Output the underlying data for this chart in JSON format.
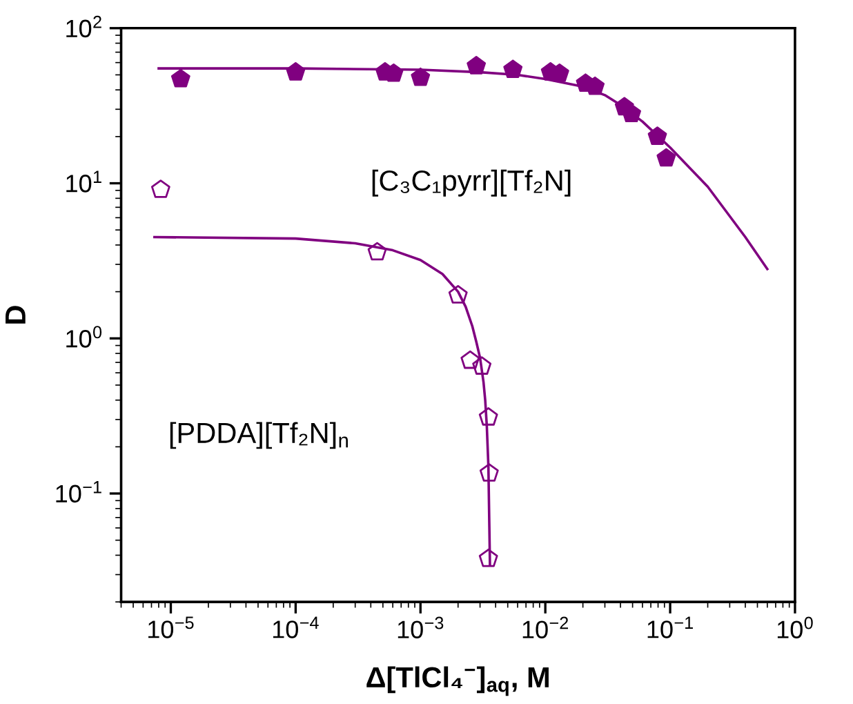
{
  "chart_data": {
    "type": "scatter",
    "xlabel": "Δ[TlCl₄$^{−}$]$_{aq}$, M",
    "ylabel": "D",
    "log": "xy",
    "xlim": [
      4e-06,
      1
    ],
    "ylim": [
      0.02,
      100
    ],
    "xticks": [
      {
        "value": 1e-05,
        "label": "10$^{−5}$"
      },
      {
        "value": 0.0001,
        "label": "10$^{−4}$"
      },
      {
        "value": 0.001,
        "label": "10$^{−3}$"
      },
      {
        "value": 0.01,
        "label": "10$^{−2}$"
      },
      {
        "value": 0.1,
        "label": "10$^{−1}$"
      },
      {
        "value": 1,
        "label": "10$^{0}$"
      }
    ],
    "yticks": [
      {
        "value": 0.1,
        "label": "10$^{−1}$"
      },
      {
        "value": 1,
        "label": "10$^{0}$"
      },
      {
        "value": 10,
        "label": "10$^{1}$"
      },
      {
        "value": 100,
        "label": "10$^{2}$"
      }
    ],
    "grid": false,
    "series": [
      {
        "color": "#800080",
        "x": [
          1.2e-05,
          0.0001,
          0.00052,
          0.00061,
          0.001,
          0.0028,
          0.0055,
          0.011,
          0.013,
          0.021,
          0.025,
          0.043,
          0.049,
          0.079,
          0.093
        ],
        "values": [
          47,
          52,
          52,
          51,
          48,
          57,
          54,
          52,
          51,
          44,
          42,
          31,
          28,
          20,
          14.5
        ]
      },
      {
        "type": "line",
        "color": "#800080",
        "x": [
          8e-06,
          0.0001,
          0.001,
          0.003,
          0.006,
          0.01,
          0.02,
          0.03,
          0.04,
          0.06,
          0.1,
          0.2,
          0.4,
          0.6
        ],
        "values": [
          55,
          55,
          54,
          52,
          50,
          47,
          42,
          37,
          32,
          25,
          17,
          9.5,
          4.5,
          2.8
        ]
      },
      {
        "color": "#800080",
        "x": [
          8.3e-06,
          0.00045,
          0.002,
          0.0025,
          0.0031,
          0.0035,
          0.00355,
          0.0035
        ],
        "values": [
          9.1,
          3.6,
          1.9,
          0.72,
          0.66,
          0.31,
          0.135,
          0.038
        ]
      },
      {
        "type": "line",
        "color": "#800080",
        "x": [
          7.4e-06,
          0.0001,
          0.0003,
          0.0006,
          0.001,
          0.0015,
          0.002,
          0.0023,
          0.0026,
          0.0028,
          0.003,
          0.0032,
          0.0033,
          0.0034,
          0.0035,
          0.0036
        ],
        "values": [
          4.5,
          4.4,
          4.1,
          3.7,
          3.2,
          2.6,
          2.0,
          1.6,
          1.2,
          0.95,
          0.75,
          0.52,
          0.4,
          0.27,
          0.15,
          0.035
        ]
      }
    ],
    "annotations": [
      "[C₃C₁pyrr][Tf₂N]",
      "[PDDA][Tf₂N]$_{n}$"
    ]
  }
}
